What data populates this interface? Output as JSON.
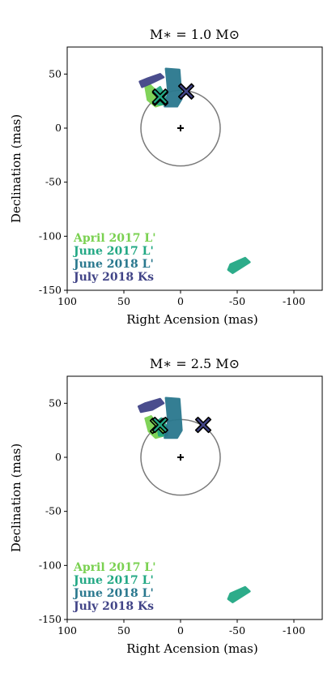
{
  "chart_data": [
    {
      "type": "scatter",
      "title": "M∗ = 1.0 M⊙",
      "xlabel": "Right Acension (mas)",
      "ylabel": "Declination (mas)",
      "xlim": [
        100,
        -125
      ],
      "ylim": [
        -150,
        75
      ],
      "xticks": [
        100,
        50,
        0,
        -50,
        -100
      ],
      "xtick_labels": [
        "100",
        "50",
        "0",
        "-50",
        "-100"
      ],
      "yticks": [
        50,
        0,
        -50,
        -100,
        -150
      ],
      "ytick_labels": [
        "50",
        "0",
        "-50",
        "-100",
        "-150"
      ],
      "circle": {
        "center": [
          0,
          0
        ],
        "radius": 35,
        "color": "#7a7a7a"
      },
      "star_marker": {
        "x": 0,
        "y": 0,
        "symbol": "+"
      },
      "series": [
        {
          "name": "April 2017 L'",
          "color": "#7ad151",
          "region": [
            [
              31,
              38
            ],
            [
              27,
              40
            ],
            [
              20,
              33
            ],
            [
              16,
              22
            ],
            [
              22,
              20
            ],
            [
              29,
              26
            ]
          ],
          "marker": {
            "x": 18,
            "y": 28
          }
        },
        {
          "name": "June 2017 L'",
          "color": "#22a884",
          "region": [
            [
              22,
              35
            ],
            [
              18,
              38
            ],
            [
              14,
              30
            ],
            [
              13,
              22
            ],
            [
              20,
              22
            ]
          ],
          "marker": {
            "x": 18,
            "y": 29
          }
        },
        {
          "name": "June 2018 L'",
          "color": "#2a788e",
          "region": [
            [
              13,
              55
            ],
            [
              1,
              54
            ],
            [
              0,
              40
            ],
            [
              -1,
              27
            ],
            [
              3,
              20
            ],
            [
              14,
              20
            ],
            [
              11,
              33
            ],
            [
              12,
              45
            ]
          ],
          "marker": null
        },
        {
          "name": "July 2018 Ks",
          "color": "#414487",
          "region": [
            [
              36,
              43
            ],
            [
              29,
              46
            ],
            [
              18,
              50
            ],
            [
              15,
              47
            ],
            [
              25,
              42
            ],
            [
              34,
              38
            ]
          ],
          "marker": {
            "x": -5,
            "y": 34
          }
        }
      ],
      "outlier": {
        "color": "#22a884",
        "region": [
          [
            -44,
            -126
          ],
          [
            -57,
            -120
          ],
          [
            -61,
            -124
          ],
          [
            -46,
            -134
          ],
          [
            -42,
            -131
          ]
        ]
      },
      "legend_position": "lower-left"
    },
    {
      "type": "scatter",
      "title": "M∗ = 2.5 M⊙",
      "xlabel": "Right Acension (mas)",
      "ylabel": "Declination (mas)",
      "xlim": [
        100,
        -125
      ],
      "ylim": [
        -150,
        75
      ],
      "xticks": [
        100,
        50,
        0,
        -50,
        -100
      ],
      "xtick_labels": [
        "100",
        "50",
        "0",
        "-50",
        "-100"
      ],
      "yticks": [
        50,
        0,
        -50,
        -100,
        -150
      ],
      "ytick_labels": [
        "50",
        "0",
        "-50",
        "-100",
        "-150"
      ],
      "circle": {
        "center": [
          0,
          0
        ],
        "radius": 35,
        "color": "#7a7a7a"
      },
      "star_marker": {
        "x": 0,
        "y": 0,
        "symbol": "+"
      },
      "series": [
        {
          "name": "April 2017 L'",
          "color": "#7ad151",
          "region": [
            [
              31,
              36
            ],
            [
              26,
              38
            ],
            [
              20,
              30
            ],
            [
              15,
              20
            ],
            [
              22,
              18
            ],
            [
              28,
              24
            ]
          ],
          "marker": {
            "x": 20,
            "y": 29
          }
        },
        {
          "name": "June 2017 L'",
          "color": "#22a884",
          "region": [
            [
              21,
              33
            ],
            [
              17,
              36
            ],
            [
              12,
              28
            ],
            [
              12,
              20
            ],
            [
              19,
              20
            ]
          ],
          "marker": {
            "x": 18,
            "y": 30
          }
        },
        {
          "name": "June 2018 L'",
          "color": "#2a788e",
          "region": [
            [
              13,
              55
            ],
            [
              1,
              54
            ],
            [
              0,
              40
            ],
            [
              -1,
              25
            ],
            [
              3,
              18
            ],
            [
              14,
              18
            ],
            [
              11,
              33
            ],
            [
              12,
              45
            ]
          ],
          "marker": null
        },
        {
          "name": "July 2018 Ks",
          "color": "#414487",
          "region": [
            [
              37,
              47
            ],
            [
              31,
              50
            ],
            [
              18,
              54
            ],
            [
              15,
              50
            ],
            [
              25,
              44
            ],
            [
              35,
              42
            ]
          ],
          "marker": {
            "x": -20,
            "y": 30
          }
        }
      ],
      "outlier": {
        "color": "#22a884",
        "region": [
          [
            -44,
            -126
          ],
          [
            -57,
            -120
          ],
          [
            -61,
            -124
          ],
          [
            -46,
            -134
          ],
          [
            -42,
            -131
          ]
        ]
      },
      "legend_position": "lower-left"
    }
  ]
}
